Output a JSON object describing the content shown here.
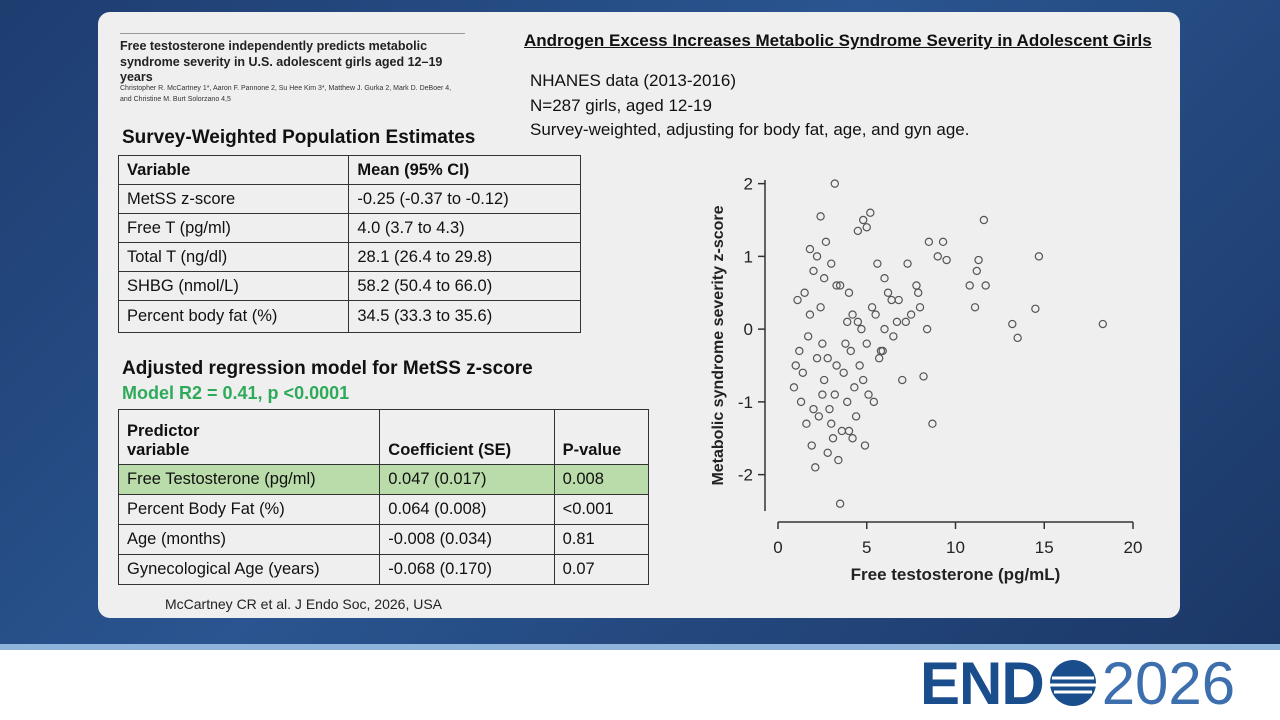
{
  "paper": {
    "title": "Free testosterone independently predicts metabolic syndrome severity in U.S. adolescent girls aged 12–19 years",
    "authors": "Christopher R. McCartney 1*, Aaron F. Pannone 2, Su Hee Kim 3*, Matthew J. Gurka 2, Mark D. DeBoer 4, and Christine M. Burt Solorzano 4,5"
  },
  "slide_title": "Androgen Excess Increases Metabolic Syndrome Severity in Adolescent Girls",
  "notes": [
    "NHANES data (2013-2016)",
    "N=287 girls, aged 12-19",
    "Survey-weighted, adjusting for body fat, age, and gyn age."
  ],
  "population_estimates": {
    "title": "Survey-Weighted Population Estimates",
    "header": [
      "Variable",
      "Mean (95% CI)"
    ],
    "rows": [
      [
        "MetSS z-score",
        "-0.25 (-0.37 to -0.12)"
      ],
      [
        "Free T (pg/ml)",
        "4.0 (3.7 to 4.3)"
      ],
      [
        "Total T (ng/dl)",
        "28.1 (26.4 to 29.8)"
      ],
      [
        "SHBG (nmol/L)",
        "58.2 (50.4 to 66.0)"
      ],
      [
        "Percent body fat (%)",
        "34.5 (33.3 to 35.6)"
      ]
    ]
  },
  "regression": {
    "title": "Adjusted regression model for MetSS z-score",
    "subtitle": "Model R2 = 0.41, p <0.0001",
    "header": [
      "Predictor variable",
      "Coefficient (SE)",
      "P-value"
    ],
    "rows": [
      [
        "Free Testosterone (pg/ml)",
        "0.047 (0.017)",
        "0.008"
      ],
      [
        "Percent Body Fat (%)",
        "0.064 (0.008)",
        "<0.001"
      ],
      [
        "Age (months)",
        "-0.008 (0.034)",
        "0.81"
      ],
      [
        "Gynecological Age (years)",
        "-0.068 (0.170)",
        "0.07"
      ]
    ]
  },
  "citation": "McCartney CR et al. J Endo Soc, 2026, USA",
  "logo": {
    "left": "END",
    "right": "2026"
  },
  "chart_data": {
    "type": "scatter",
    "x_label": "Free testosterone (pg/mL)",
    "y_label": "Metabolic syndrome severity z-score",
    "color": "#555555",
    "x": [
      3.2,
      3.5,
      18.3,
      14.7,
      11.6,
      13.5,
      13.2,
      14.5,
      8.7,
      11.2,
      11.3,
      10.8,
      11.7,
      11.1,
      9.3,
      8.5,
      9.5,
      5.2,
      2.4,
      2.7,
      4.8,
      4.5,
      5.0,
      2.2,
      2.0,
      1.8,
      3.0,
      3.3,
      4.0,
      4.2,
      1.5,
      1.2,
      1.0,
      0.9,
      1.3,
      1.6,
      1.9,
      2.1,
      2.3,
      2.5,
      2.6,
      2.8,
      2.9,
      3.1,
      3.4,
      3.6,
      3.7,
      3.8,
      3.9,
      4.1,
      4.3,
      4.4,
      4.6,
      4.7,
      4.9,
      5.1,
      5.3,
      5.5,
      5.7,
      6.0,
      6.2,
      6.5,
      6.8,
      7.0,
      7.3,
      7.5,
      7.8,
      8.0,
      8.2,
      8.4,
      9.0,
      6.4,
      5.8,
      5.4,
      4.0,
      3.2,
      2.4,
      1.7,
      1.4,
      2.0,
      2.2,
      3.5,
      4.5,
      5.0,
      6.0,
      7.2,
      3.0,
      2.6,
      1.8,
      4.8,
      5.6,
      3.9,
      2.8,
      1.1,
      2.5,
      3.3,
      4.2,
      5.9,
      6.7,
      7.9
    ],
    "y": [
      2.0,
      -2.4,
      0.07,
      1.0,
      1.5,
      -0.12,
      0.07,
      0.28,
      -1.3,
      0.8,
      0.95,
      0.6,
      0.6,
      0.3,
      1.2,
      1.2,
      0.95,
      1.6,
      1.55,
      1.2,
      1.5,
      1.35,
      1.4,
      1.0,
      0.8,
      1.1,
      0.9,
      0.6,
      0.5,
      0.2,
      0.5,
      -0.3,
      -0.5,
      -0.8,
      -1.0,
      -1.3,
      -1.6,
      -1.9,
      -1.2,
      -0.9,
      -0.7,
      -0.4,
      -1.1,
      -1.5,
      -1.8,
      -1.4,
      -0.6,
      -0.2,
      0.1,
      -0.3,
      -0.8,
      -1.2,
      -0.5,
      0.0,
      -1.6,
      -0.9,
      0.3,
      0.2,
      -0.4,
      0.7,
      0.5,
      -0.1,
      0.4,
      -0.7,
      0.9,
      0.2,
      0.6,
      0.3,
      -0.65,
      0.0,
      1.0,
      0.4,
      -0.3,
      -1.0,
      -1.4,
      -0.9,
      0.3,
      -0.1,
      -0.6,
      -1.1,
      -0.4,
      0.6,
      0.1,
      -0.2,
      0.0,
      0.1,
      -1.3,
      0.7,
      0.2,
      -0.7,
      0.9,
      -1.0,
      -1.7,
      0.4,
      -0.2,
      -0.5,
      -1.5,
      -0.3,
      0.1,
      0.5
    ],
    "xlim": [
      0,
      20
    ],
    "ylim": [
      -2.5,
      2.05
    ],
    "xticks": [
      0,
      5,
      10,
      15,
      20
    ],
    "yticks": [
      2,
      1,
      0,
      -1,
      -2
    ]
  }
}
